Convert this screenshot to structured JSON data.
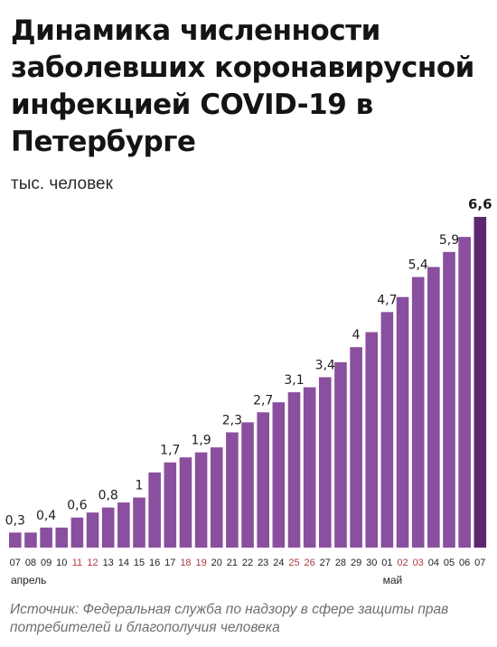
{
  "title": "Динамика численности заболевших коронавирусной инфекцией COVID-19 в Петербурге",
  "unit_label": "тыс. человек",
  "source": "Источник: Федеральная служба по надзору в сфере защиты прав потребителей и благополучия человека",
  "colors": {
    "bar": "#8a4f9e",
    "bar_last": "#5c2770",
    "weekend_tick": "#b03a3a",
    "tick": "#222222",
    "baseline": "#cfcfcf"
  },
  "chart_data": {
    "type": "bar",
    "title": "Динамика численности заболевших коронавирусной инфекцией COVID-19 в Петербурге",
    "ylabel": "тыс. человек",
    "ylim": [
      0,
      6.6
    ],
    "grid": false,
    "categories": [
      "07",
      "08",
      "09",
      "10",
      "11",
      "12",
      "13",
      "14",
      "15",
      "16",
      "17",
      "18",
      "19",
      "20",
      "21",
      "22",
      "23",
      "24",
      "25",
      "26",
      "27",
      "28",
      "29",
      "30",
      "01",
      "02",
      "03",
      "04",
      "05",
      "06",
      "07"
    ],
    "weekend_ticks": [
      "11",
      "12",
      "18",
      "19",
      "25",
      "26",
      "02",
      "03"
    ],
    "month_labels": [
      {
        "at_category_index": 0,
        "label": "апрель"
      },
      {
        "at_category_index": 24,
        "label": "май"
      }
    ],
    "values": [
      0.3,
      0.3,
      0.4,
      0.4,
      0.6,
      0.7,
      0.8,
      0.9,
      1.0,
      1.5,
      1.7,
      1.8,
      1.9,
      2.0,
      2.3,
      2.5,
      2.7,
      2.9,
      3.1,
      3.2,
      3.4,
      3.7,
      4.0,
      4.3,
      4.7,
      5.0,
      5.4,
      5.6,
      5.9,
      6.2,
      6.6
    ],
    "data_labels": [
      {
        "index": 0,
        "text": "0,3"
      },
      {
        "index": 2,
        "text": "0,4"
      },
      {
        "index": 4,
        "text": "0,6"
      },
      {
        "index": 6,
        "text": "0,8"
      },
      {
        "index": 8,
        "text": "1"
      },
      {
        "index": 10,
        "text": "1,7"
      },
      {
        "index": 12,
        "text": "1,9"
      },
      {
        "index": 14,
        "text": "2,3"
      },
      {
        "index": 16,
        "text": "2,7"
      },
      {
        "index": 18,
        "text": "3,1"
      },
      {
        "index": 20,
        "text": "3,4"
      },
      {
        "index": 22,
        "text": "4"
      },
      {
        "index": 24,
        "text": "4,7"
      },
      {
        "index": 26,
        "text": "5,4"
      },
      {
        "index": 28,
        "text": "5,9"
      },
      {
        "index": 30,
        "text": "6,6",
        "bold": true
      }
    ]
  }
}
